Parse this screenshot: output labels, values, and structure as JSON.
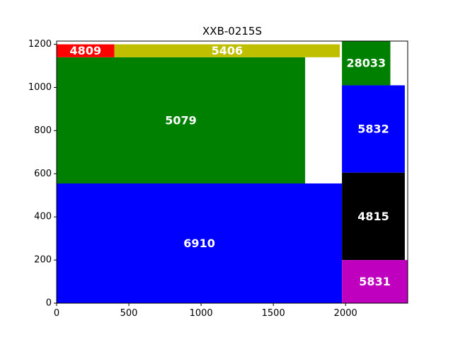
{
  "chart_data": {
    "type": "treemap",
    "title": "XXB-0215S",
    "xlim": [
      0,
      2430
    ],
    "ylim": [
      0,
      1215
    ],
    "xticks": [
      0,
      500,
      1000,
      1500,
      2000
    ],
    "yticks": [
      0,
      200,
      400,
      600,
      800,
      1000,
      1200
    ],
    "grid": false,
    "rects": [
      {
        "label": "6910",
        "x0": 0,
        "x1": 1975,
        "y0": 0,
        "y1": 555,
        "color": "#0000ff"
      },
      {
        "label": "5079",
        "x0": 0,
        "x1": 1720,
        "y0": 555,
        "y1": 1140,
        "color": "#008000"
      },
      {
        "label": "4809",
        "x0": 0,
        "x1": 400,
        "y0": 1140,
        "y1": 1200,
        "color": "#ff0000"
      },
      {
        "label": "5406",
        "x0": 400,
        "x1": 1960,
        "y0": 1140,
        "y1": 1200,
        "color": "#bfbf00"
      },
      {
        "label": "28033",
        "x0": 1975,
        "x1": 2310,
        "y0": 1010,
        "y1": 1215,
        "color": "#008000"
      },
      {
        "label": "5832",
        "x0": 1975,
        "x1": 2410,
        "y0": 605,
        "y1": 1010,
        "color": "#0000ff"
      },
      {
        "label": "4815",
        "x0": 1975,
        "x1": 2410,
        "y0": 200,
        "y1": 605,
        "color": "#000000"
      },
      {
        "label": "5831",
        "x0": 1975,
        "x1": 2430,
        "y0": 0,
        "y1": 200,
        "color": "#bf00bf"
      }
    ]
  }
}
